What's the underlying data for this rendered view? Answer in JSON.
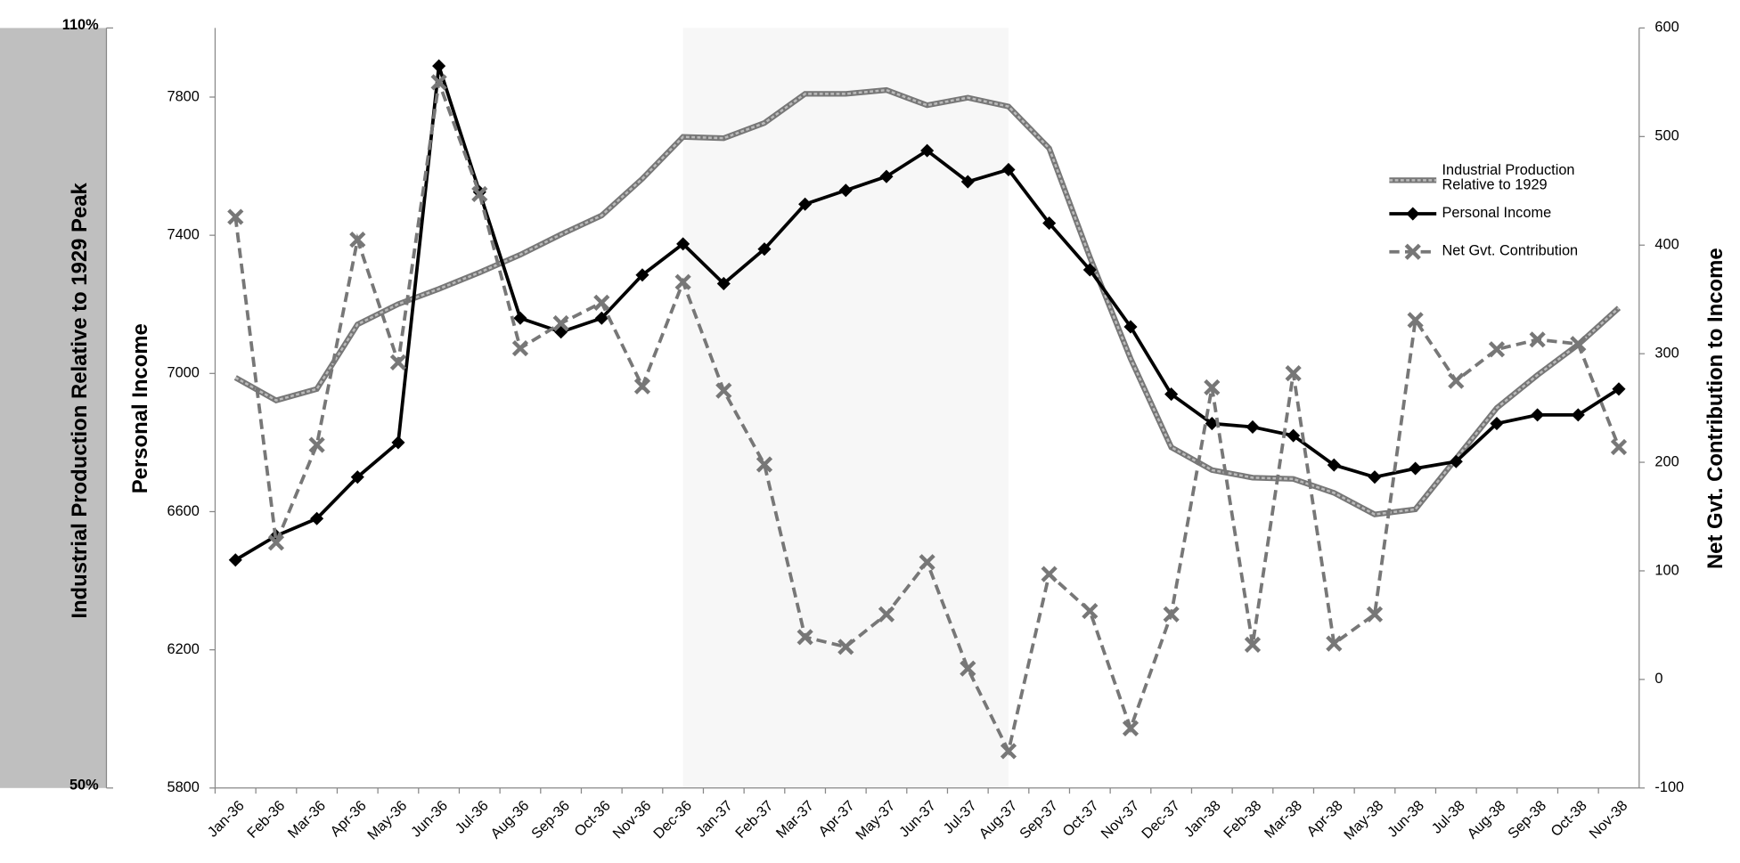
{
  "chart_data": {
    "type": "line",
    "categories": [
      "Jan-36",
      "Feb-36",
      "Mar-36",
      "Apr-36",
      "May-36",
      "Jun-36",
      "Jul-36",
      "Aug-36",
      "Sep-36",
      "Oct-36",
      "Nov-36",
      "Dec-36",
      "Jan-37",
      "Feb-37",
      "Mar-37",
      "Apr-37",
      "May-37",
      "Jun-37",
      "Jul-37",
      "Aug-37",
      "Sep-37",
      "Oct-37",
      "Nov-37",
      "Dec-37",
      "Jan-38",
      "Feb-38",
      "Mar-38",
      "Apr-38",
      "May-38",
      "Jun-38",
      "Jul-38",
      "Aug-38",
      "Sep-38",
      "Oct-38",
      "Nov-38"
    ],
    "y3_label": "Industrial Production Relative to 1929 Peak",
    "y_label": "Personal Income",
    "y2_label": "Net Gvt. Contribution to Income",
    "series": [
      {
        "name": "Industrial Production Relative to 1929",
        "color": "#777777",
        "axis": "y3",
        "marker": "none",
        "values": [
          82.4,
          80.6,
          81.5,
          86.6,
          88.2,
          89.4,
          90.7,
          92.1,
          93.7,
          95.2,
          98.1,
          101.4,
          101.3,
          102.5,
          104.8,
          104.8,
          105.1,
          103.9,
          104.5,
          103.8,
          100.5,
          91.9,
          83.9,
          76.9,
          75.1,
          74.5,
          74.4,
          73.3,
          71.6,
          72.0,
          76.0,
          80.0,
          82.6,
          85.0,
          87.9
        ]
      },
      {
        "name": "Personal Income",
        "color": "#000000",
        "axis": "y",
        "marker": "diamond",
        "values": [
          6460,
          6530,
          6580,
          6700,
          6800,
          7890,
          7525,
          7160,
          7120,
          7160,
          7285,
          7375,
          7260,
          7360,
          7490,
          7530,
          7570,
          7645,
          7555,
          7590,
          7435,
          7300,
          7135,
          6940,
          6855,
          6845,
          6820,
          6735,
          6700,
          6725,
          6745,
          6855,
          6880,
          6880,
          6955
        ]
      },
      {
        "name": "Net Gvt. Contribution",
        "color": "#777777",
        "axis": "y2",
        "marker": "x",
        "dashed": true,
        "values": [
          426,
          126,
          216,
          405,
          292,
          550,
          447,
          305,
          328,
          347,
          270,
          366,
          266,
          198,
          39,
          30,
          60,
          108,
          10,
          -66,
          97,
          63,
          -45,
          60,
          269,
          32,
          282,
          33,
          60,
          331,
          275,
          304,
          313,
          309,
          214
        ]
      }
    ],
    "ylim": [
      5800,
      8000
    ],
    "yticks": [
      5800,
      6200,
      6600,
      7000,
      7400,
      7800
    ],
    "y2lim": [
      -100,
      600
    ],
    "y2ticks": [
      -100,
      0,
      100,
      200,
      300,
      400,
      500,
      600
    ],
    "y3lim": [
      50,
      110
    ],
    "y3ticks": [
      {
        "value": 50,
        "label": "50%"
      },
      {
        "value": 110,
        "label": "110%"
      }
    ],
    "shaded_range": [
      "Dec-36",
      "Aug-37"
    ],
    "legend": "right"
  }
}
